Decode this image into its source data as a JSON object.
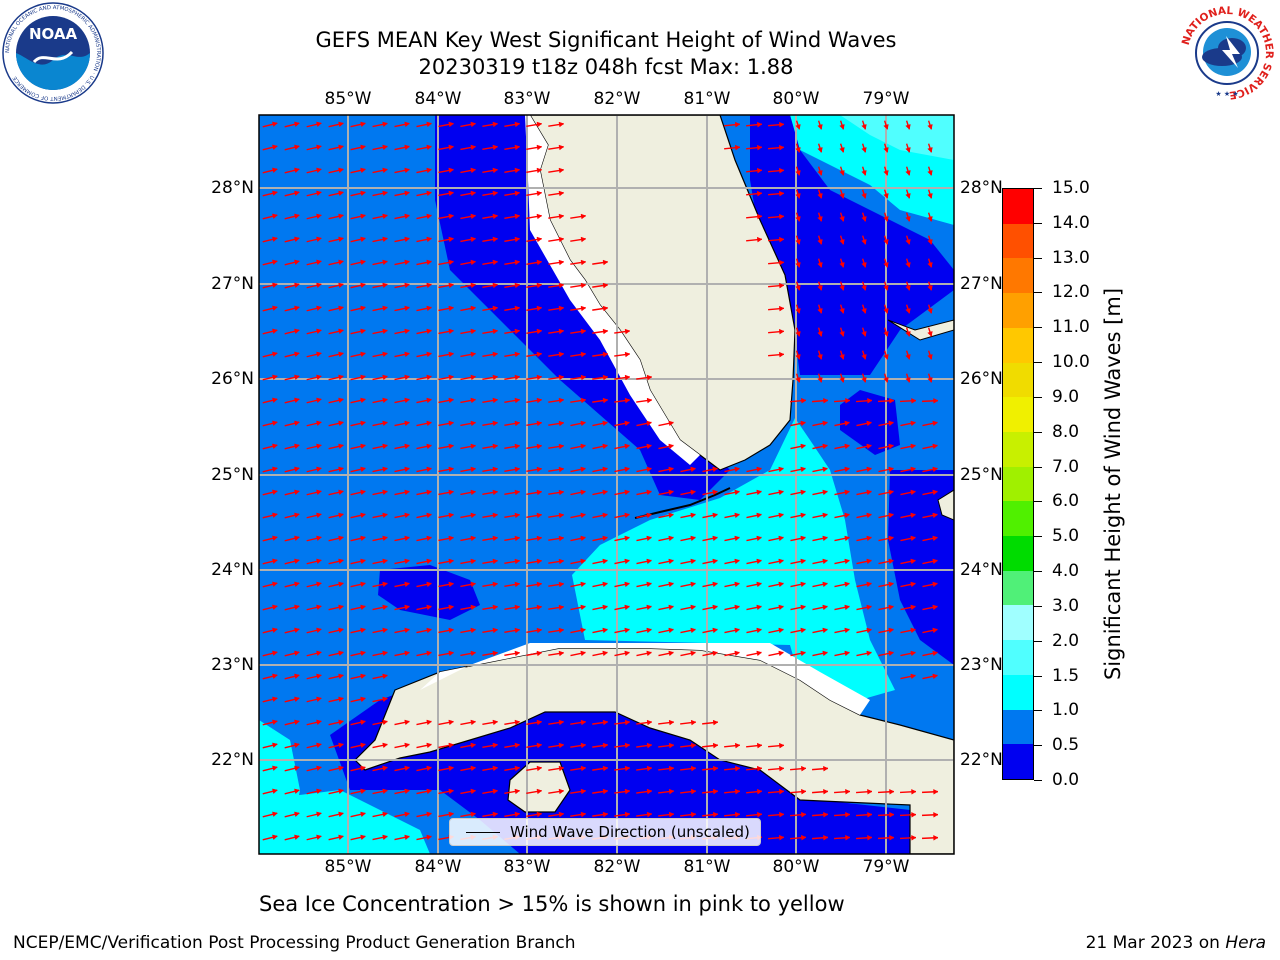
{
  "title_line1": "GEFS MEAN Key West Significant Height of Wind Waves",
  "title_line2": "20230319 t18z 048h fcst   Max: 1.88",
  "map": {
    "longitude_labels": [
      "85°W",
      "84°W",
      "83°W",
      "82°W",
      "81°W",
      "80°W",
      "79°W"
    ],
    "latitude_labels": [
      "28°N",
      "27°N",
      "26°N",
      "25°N",
      "24°N",
      "23°N",
      "22°N"
    ],
    "legend_label": "Wind Wave Direction (unscaled)",
    "land_color": "#efefdf",
    "vector_color": "#ff0000",
    "coastline_color": "#000000",
    "gridline_color": "#b0b0b0"
  },
  "colorbar": {
    "title": "Significant Height of Wind Waves [m]",
    "tick_labels": [
      "0.0",
      "0.5",
      "1.0",
      "1.5",
      "2.0",
      "3.0",
      "4.0",
      "5.0",
      "6.0",
      "7.0",
      "8.0",
      "9.0",
      "10.0",
      "11.0",
      "12.0",
      "13.0",
      "14.0",
      "15.0"
    ],
    "colors": [
      "#0000f0",
      "#0078f0",
      "#00ffff",
      "#50ffff",
      "#a0ffff",
      "#50f078",
      "#00dc00",
      "#50f000",
      "#a0f000",
      "#c8f000",
      "#f0f000",
      "#f0dc00",
      "#ffc800",
      "#ffa000",
      "#ff7800",
      "#ff5000",
      "#ff0000"
    ]
  },
  "sea_ice_note": "Sea Ice Concentration > 15% is shown in pink to yellow",
  "footer": {
    "credit": "NCEP/EMC/Verification Post Processing Product Generation Branch",
    "date": "21 Mar 2023 on",
    "host": "Hera"
  },
  "logos": {
    "noaa_text": "NOAA",
    "noaa_ring_text": "NATIONAL OCEANIC AND ATMOSPHERIC ADMINISTRATION · U.S. DEPARTMENT OF COMMERCE",
    "nws_ring_text": "NATIONAL WEATHER SERVICE"
  }
}
